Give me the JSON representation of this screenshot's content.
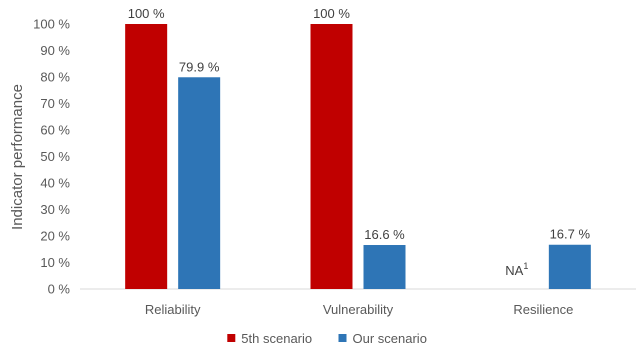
{
  "chart_data": {
    "type": "bar",
    "title": "",
    "xlabel": "",
    "ylabel": "Indicator performance",
    "ylim": [
      0,
      100
    ],
    "y_ticks": [
      0,
      10,
      20,
      30,
      40,
      50,
      60,
      70,
      80,
      90,
      100
    ],
    "y_tick_suffix": " %",
    "grid": false,
    "legend_position": "bottom",
    "categories": [
      "Reliability",
      "Vulnerability",
      "Resilience"
    ],
    "series": [
      {
        "name": "5th scenario",
        "color": "#c00000",
        "values": [
          100,
          100,
          null
        ],
        "labels": [
          "100 %",
          "100 %",
          "NA"
        ],
        "label_superscripts": [
          "",
          "",
          "1"
        ]
      },
      {
        "name": "Our scenario",
        "color": "#2e75b6",
        "values": [
          79.9,
          16.6,
          16.7
        ],
        "labels": [
          "79.9 %",
          "16.6 %",
          "16.7 %"
        ],
        "label_superscripts": [
          "",
          "",
          ""
        ]
      }
    ]
  }
}
